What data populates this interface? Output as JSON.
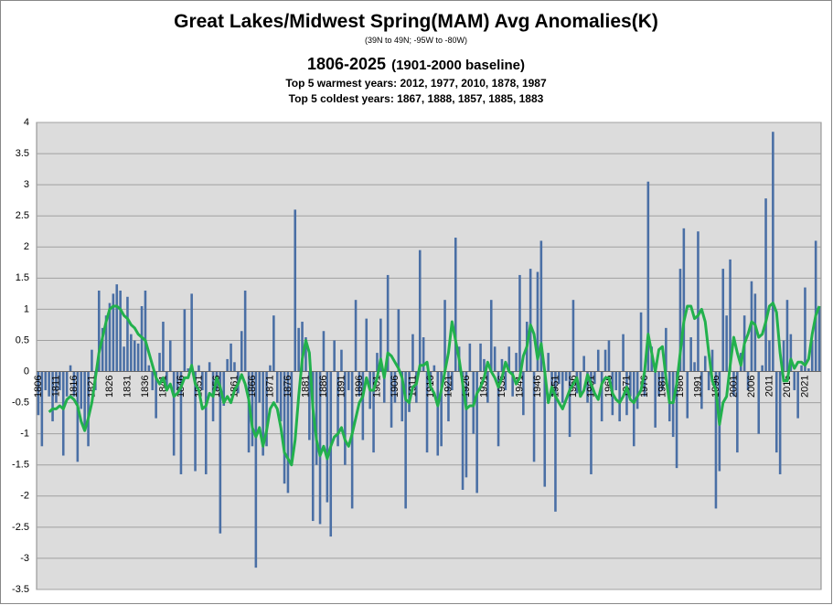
{
  "chart_data": {
    "type": "bar",
    "title": "Great Lakes/Midwest Spring(MAM) Avg Anomalies(K)",
    "subtitle": "(39N to 49N; -95W to -80W)",
    "period": "1806-2025",
    "baseline": "(1901-2000 baseline)",
    "warmest": "Top 5 warmest years: 2012, 1977, 2010, 1878, 1987",
    "coldest": "Top 5 coldest years: 1867, 1888, 1857, 1885, 1883",
    "grid": true,
    "ylim": [
      -3.5,
      4
    ],
    "yticks": [
      4,
      3.5,
      3,
      2.5,
      2,
      1.5,
      1,
      0.5,
      0,
      -0.5,
      -1,
      -1.5,
      -2,
      -2.5,
      -3,
      -3.5
    ],
    "categories": [
      "1806",
      null,
      null,
      null,
      null,
      "1811",
      null,
      null,
      null,
      null,
      "1816",
      null,
      null,
      null,
      null,
      "1821",
      null,
      null,
      null,
      null,
      "1826",
      null,
      null,
      null,
      null,
      "1831",
      null,
      null,
      null,
      null,
      "1836",
      null,
      null,
      null,
      null,
      "1841",
      null,
      null,
      null,
      null,
      "1846",
      null,
      null,
      null,
      null,
      "1851",
      null,
      null,
      null,
      null,
      "1856",
      null,
      null,
      null,
      null,
      "1861",
      null,
      null,
      null,
      null,
      "1866",
      null,
      null,
      null,
      null,
      "1871",
      null,
      null,
      null,
      null,
      "1876",
      null,
      null,
      null,
      null,
      "1881",
      null,
      null,
      null,
      null,
      "1886",
      null,
      null,
      null,
      null,
      "1891",
      null,
      null,
      null,
      null,
      "1896",
      null,
      null,
      null,
      null,
      "1901",
      null,
      null,
      null,
      null,
      "1906",
      null,
      null,
      null,
      null,
      "1911",
      null,
      null,
      null,
      null,
      "1916",
      null,
      null,
      null,
      null,
      "1921",
      null,
      null,
      null,
      null,
      "1926",
      null,
      null,
      null,
      null,
      "1931",
      null,
      null,
      null,
      null,
      "1936",
      null,
      null,
      null,
      null,
      "1941",
      null,
      null,
      null,
      null,
      "1946",
      null,
      null,
      null,
      null,
      "1951",
      null,
      null,
      null,
      null,
      "1956",
      null,
      null,
      null,
      null,
      "1961",
      null,
      null,
      null,
      null,
      "1966",
      null,
      null,
      null,
      null,
      "1971",
      null,
      null,
      null,
      null,
      "1976",
      null,
      null,
      null,
      null,
      "1981",
      null,
      null,
      null,
      null,
      "1986",
      null,
      null,
      null,
      null,
      "1991",
      null,
      null,
      null,
      null,
      "1996",
      null,
      null,
      null,
      null,
      "2001",
      null,
      null,
      null,
      null,
      "2006",
      null,
      null,
      null,
      null,
      "2011",
      null,
      null,
      null,
      null,
      "2016",
      null,
      null,
      null,
      null,
      "2021",
      null,
      null,
      null,
      null
    ],
    "series": [
      {
        "type": "bar",
        "color": "#4a6fa5",
        "values": [
          -0.7,
          -1.2,
          -0.3,
          -0.4,
          -0.8,
          -0.5,
          -0.3,
          -1.35,
          -0.4,
          0.1,
          -0.4,
          -1.45,
          -0.6,
          -0.9,
          -1.2,
          0.35,
          -0.3,
          1.3,
          0.7,
          0.9,
          1.1,
          1.25,
          1.4,
          1.3,
          0.4,
          1.2,
          0.6,
          0.5,
          0.45,
          1.05,
          1.3,
          0.1,
          -0.3,
          -0.75,
          0.3,
          0.8,
          -0.3,
          0.5,
          -1.35,
          -0.3,
          -1.65,
          1.0,
          0.05,
          1.25,
          -1.6,
          0.1,
          -0.3,
          -1.65,
          0.15,
          -0.8,
          -0.3,
          -2.6,
          -0.55,
          0.2,
          0.45,
          0.15,
          -0.35,
          0.65,
          1.3,
          -1.3,
          -1.2,
          -3.15,
          -0.5,
          -1.35,
          -1.2,
          0.1,
          0.9,
          -0.5,
          -0.8,
          -1.8,
          -1.95,
          -1.5,
          2.6,
          0.7,
          0.8,
          0.55,
          -1.1,
          -2.4,
          -1.5,
          -2.45,
          0.65,
          -2.1,
          -2.65,
          0.5,
          -1.2,
          0.35,
          -1.5,
          -0.3,
          -2.2,
          1.15,
          -0.4,
          -1.1,
          0.85,
          -0.6,
          -1.3,
          0.3,
          0.85,
          -0.5,
          1.55,
          -0.9,
          -0.5,
          1.0,
          -0.8,
          -2.2,
          -0.65,
          0.6,
          -0.5,
          1.95,
          0.55,
          -1.3,
          -0.3,
          0.1,
          -1.35,
          -1.2,
          1.15,
          -0.8,
          -0.3,
          2.15,
          0.4,
          -1.9,
          -1.7,
          0.45,
          -1.0,
          -1.95,
          0.45,
          0.2,
          -0.5,
          1.15,
          0.4,
          -1.2,
          0.2,
          -0.3,
          0.4,
          -0.4,
          0.3,
          1.55,
          -0.7,
          0.8,
          1.65,
          -1.45,
          1.6,
          2.1,
          -1.85,
          0.3,
          -0.4,
          -2.25,
          -0.2,
          -0.5,
          -0.15,
          -1.05,
          1.15,
          -0.35,
          -0.4,
          0.25,
          -0.5,
          -1.65,
          -0.2,
          0.35,
          -0.8,
          0.35,
          0.5,
          -0.7,
          -0.3,
          -0.8,
          0.6,
          -0.7,
          -0.4,
          -1.2,
          -0.6,
          0.95,
          -0.4,
          3.05,
          0.4,
          -0.9,
          -0.4,
          -0.3,
          0.7,
          -0.8,
          -1.05,
          -1.55,
          1.65,
          2.3,
          -0.75,
          0.55,
          0.15,
          2.25,
          -0.6,
          0.25,
          -0.3,
          0.35,
          -2.2,
          -1.6,
          1.65,
          0.9,
          1.8,
          -0.4,
          -1.3,
          0.3,
          0.9,
          -0.3,
          1.45,
          1.25,
          -1.0,
          0.1,
          2.78,
          0.5,
          3.85,
          -1.3,
          -1.65,
          0.5,
          1.15,
          0.6,
          -0.3,
          -0.75,
          0.1,
          1.35,
          0.05,
          0.5,
          2.1,
          1.05
        ]
      },
      {
        "type": "line",
        "color": "#22b14c",
        "values": [
          null,
          null,
          null,
          -0.65,
          -0.6,
          -0.6,
          -0.55,
          -0.6,
          -0.45,
          -0.4,
          -0.45,
          -0.55,
          -0.8,
          -0.95,
          -0.75,
          -0.5,
          -0.1,
          0.3,
          0.55,
          0.8,
          1.0,
          1.05,
          1.05,
          1.0,
          0.9,
          0.85,
          0.75,
          0.7,
          0.6,
          0.55,
          0.5,
          0.3,
          0.1,
          -0.1,
          -0.2,
          -0.1,
          -0.3,
          -0.2,
          -0.4,
          -0.35,
          -0.25,
          -0.1,
          -0.1,
          0.1,
          -0.2,
          -0.3,
          -0.6,
          -0.55,
          -0.35,
          -0.4,
          -0.1,
          -0.25,
          -0.5,
          -0.4,
          -0.5,
          -0.3,
          -0.2,
          -0.05,
          -0.2,
          -0.45,
          -0.9,
          -1.05,
          -0.9,
          -1.2,
          -0.95,
          -0.6,
          -0.5,
          -0.6,
          -0.9,
          -1.3,
          -1.4,
          -1.5,
          -1.1,
          -0.4,
          0.2,
          0.5,
          0.3,
          -0.6,
          -1.1,
          -1.35,
          -1.2,
          -1.4,
          -1.2,
          -1.05,
          -1.0,
          -0.9,
          -1.1,
          -1.2,
          -1.0,
          -0.75,
          -0.5,
          -0.4,
          -0.1,
          -0.3,
          -0.3,
          -0.1,
          0.2,
          -0.1,
          0.3,
          0.25,
          0.15,
          0.05,
          -0.1,
          -0.45,
          -0.5,
          -0.25,
          -0.2,
          0.1,
          0.1,
          0.15,
          -0.25,
          -0.35,
          -0.55,
          -0.3,
          0.0,
          0.3,
          0.8,
          0.5,
          0.2,
          -0.2,
          -0.6,
          -0.55,
          -0.55,
          -0.35,
          -0.25,
          -0.1,
          0.15,
          0.0,
          -0.1,
          -0.25,
          -0.1,
          0.15,
          0.0,
          -0.05,
          -0.2,
          -0.1,
          0.25,
          0.4,
          0.75,
          0.6,
          0.2,
          0.45,
          0.0,
          -0.5,
          -0.25,
          -0.4,
          -0.5,
          -0.6,
          -0.45,
          -0.3,
          -0.2,
          -0.1,
          -0.4,
          -0.3,
          -0.05,
          -0.2,
          -0.35,
          -0.45,
          -0.2,
          -0.1,
          -0.1,
          -0.35,
          -0.45,
          -0.5,
          -0.4,
          -0.25,
          -0.45,
          -0.5,
          -0.4,
          -0.3,
          0.0,
          0.6,
          0.3,
          0.0,
          0.35,
          0.4,
          -0.1,
          -0.5,
          -0.5,
          -0.2,
          0.3,
          0.8,
          1.05,
          1.05,
          0.85,
          0.9,
          1.0,
          0.8,
          0.3,
          -0.15,
          -0.3,
          -0.85,
          -0.5,
          -0.4,
          0.1,
          0.55,
          0.3,
          0.1,
          0.45,
          0.6,
          0.8,
          0.75,
          0.55,
          0.6,
          0.8,
          1.05,
          1.1,
          0.95,
          0.3,
          -0.15,
          -0.15,
          0.2,
          0.05,
          0.15,
          0.15,
          0.1,
          0.2,
          0.6,
          0.9,
          1.05
        ]
      }
    ]
  }
}
